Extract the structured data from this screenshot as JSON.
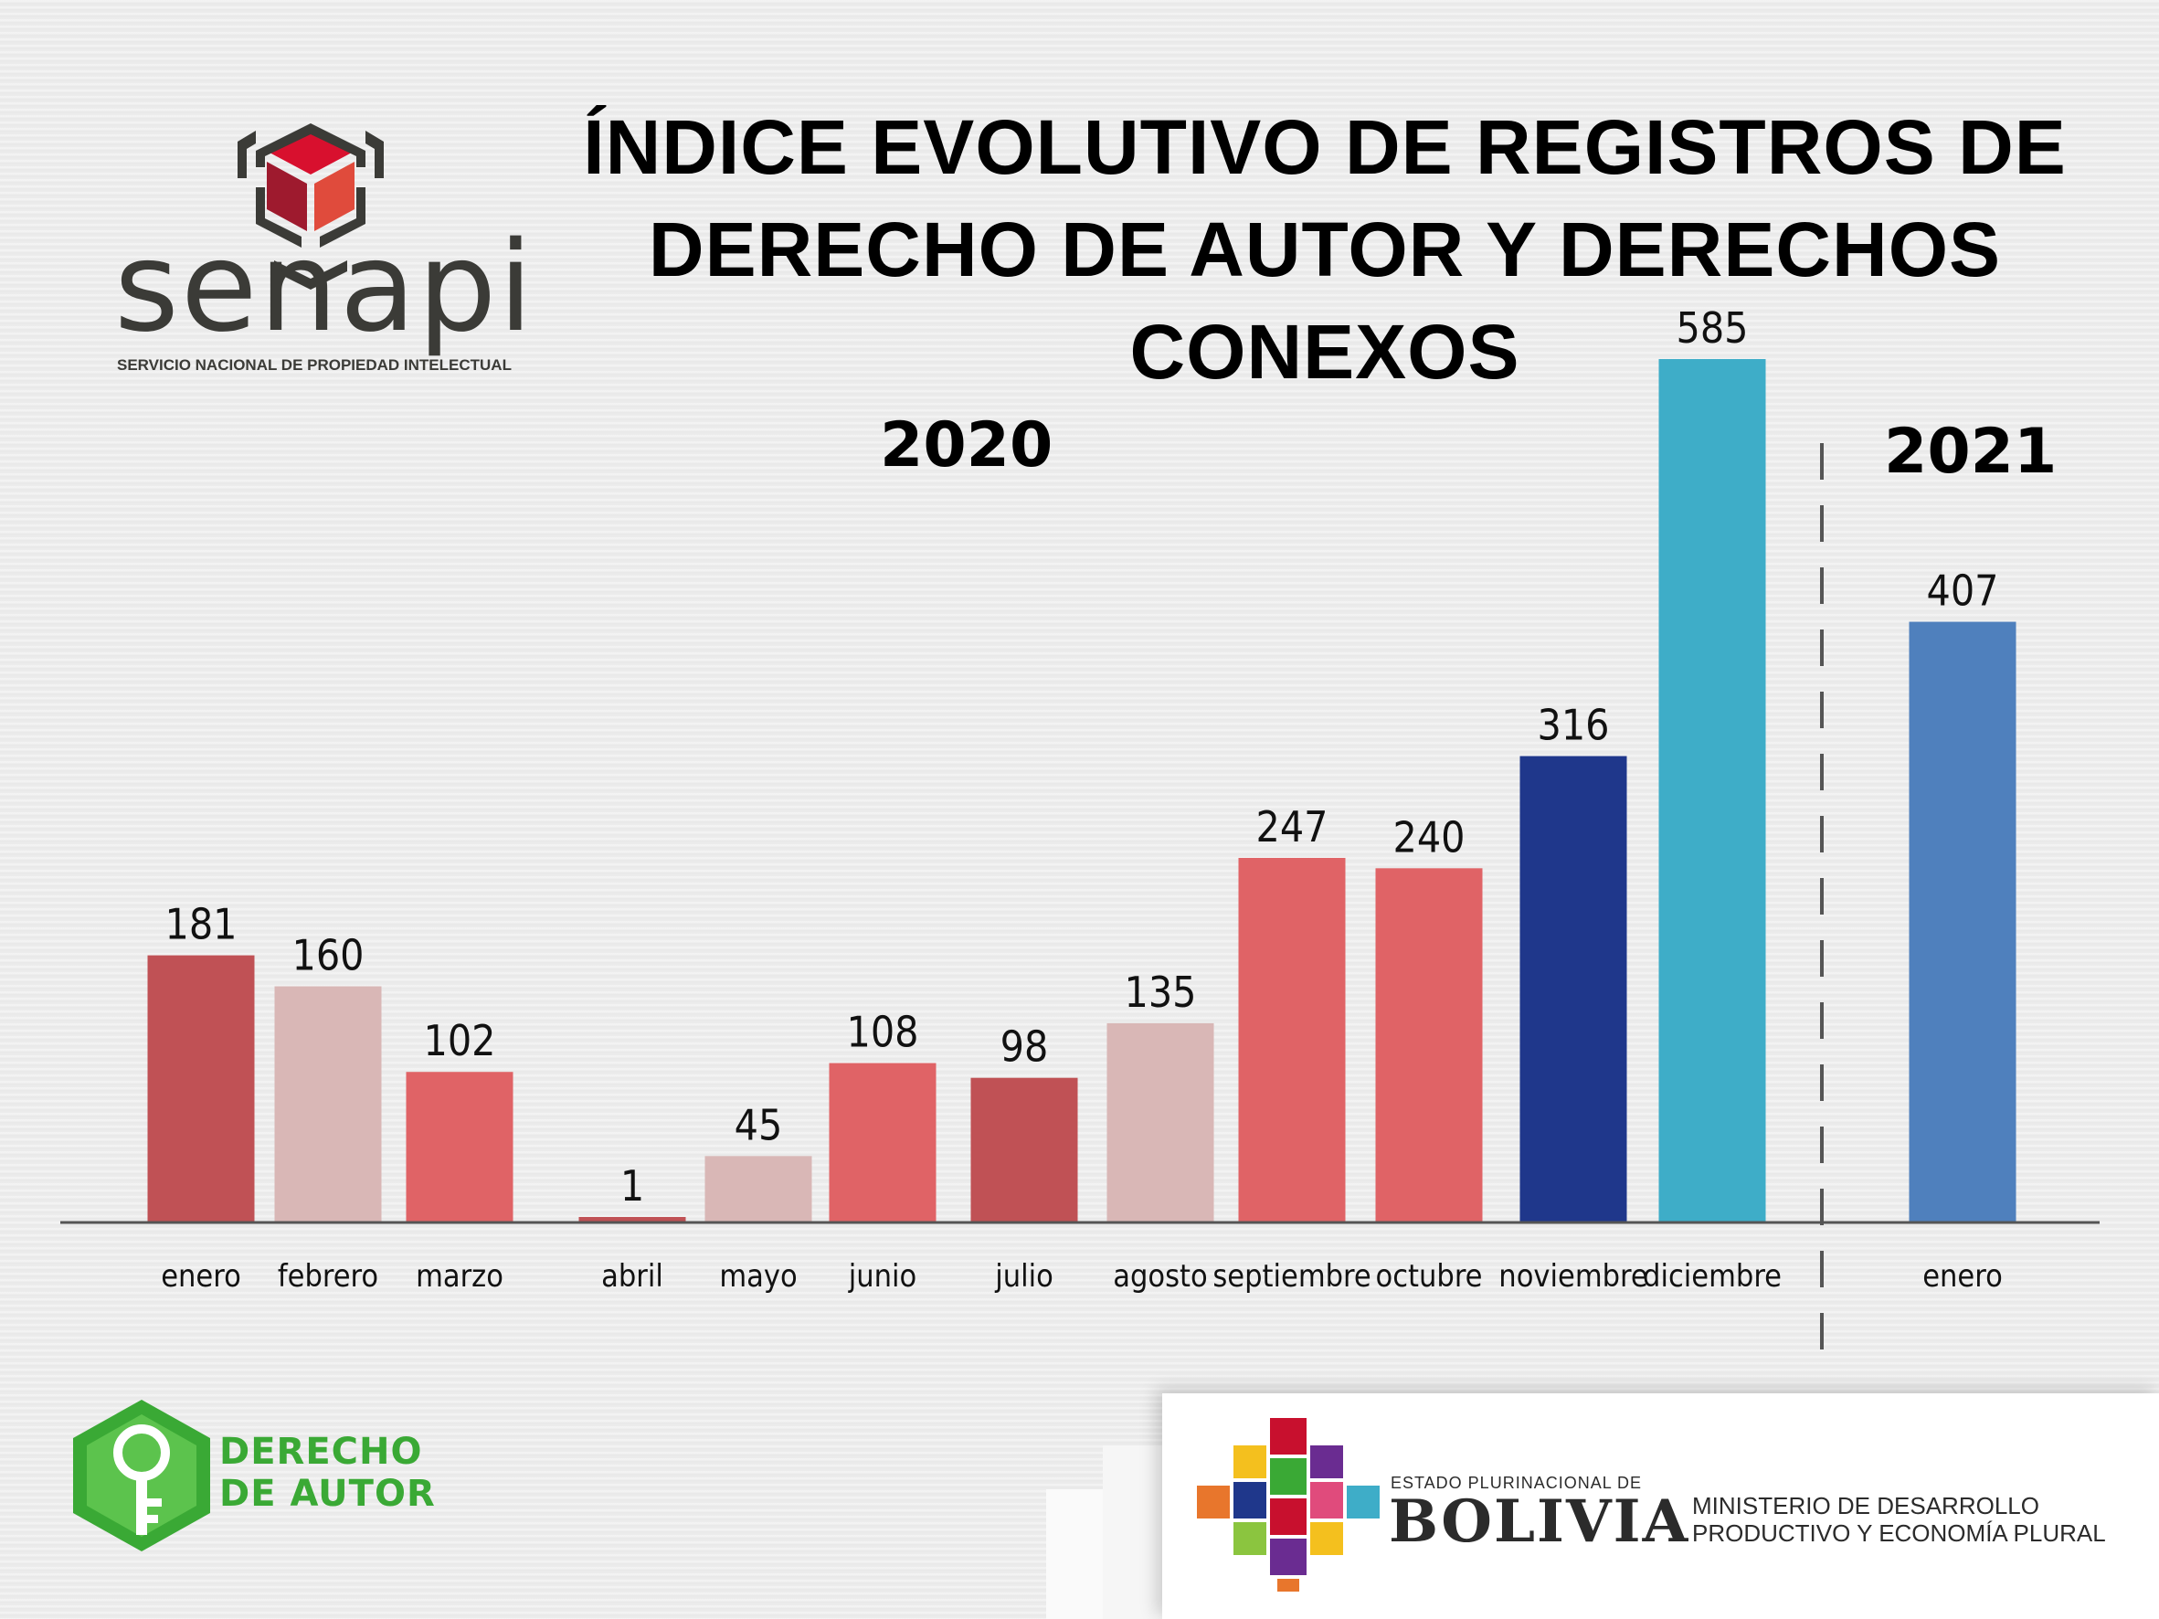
{
  "header": {
    "title_line1": "ÍNDICE EVOLUTIVO DE REGISTROS DE",
    "title_line2": "DERECHO DE AUTOR Y DERECHOS CONEXOS"
  },
  "brand": {
    "senapi_name": "senapi",
    "senapi_subtitle": "SERVICIO NACIONAL DE PROPIEDAD INTELECTUAL",
    "da_line1": "DERECHO",
    "da_line2": "DE AUTOR",
    "estado": "ESTADO PLURINACIONAL DE",
    "bolivia": "BOLIVIA",
    "ministerio_line1": "MINISTERIO DE DESARROLLO",
    "ministerio_line2": "PRODUCTIVO Y ECONOMÍA PLURAL",
    "colors": {
      "senapi_red": "#c8102e",
      "senapi_gray": "#3b3b37",
      "da_green": "#3aa935"
    },
    "icons": [
      "senapi-cube-icon",
      "key-hexagon-icon",
      "bolivia-emblem-icon"
    ]
  },
  "chart_data": {
    "type": "bar",
    "title": "ÍNDICE EVOLUTIVO DE REGISTROS DE DERECHO DE AUTOR Y DERECHOS CONEXOS",
    "groups": [
      {
        "label": "2020",
        "categories": [
          "enero",
          "febrero",
          "marzo",
          "abril",
          "mayo",
          "junio",
          "julio",
          "agosto",
          "septiembre",
          "octubre",
          "noviembre",
          "diciembre"
        ]
      },
      {
        "label": "2021",
        "categories": [
          "enero"
        ]
      }
    ],
    "categories": [
      "enero",
      "febrero",
      "marzo",
      "abril",
      "mayo",
      "junio",
      "julio",
      "agosto",
      "septiembre",
      "octubre",
      "noviembre",
      "diciembre",
      "enero"
    ],
    "values": [
      181,
      160,
      102,
      1,
      45,
      108,
      98,
      135,
      247,
      240,
      316,
      585,
      407
    ],
    "colors": [
      "#c05155",
      "#d9b7b6",
      "#e06366",
      "#c05155",
      "#d9b7b6",
      "#e06366",
      "#c05155",
      "#d9b7b6",
      "#e06366",
      "#e06366",
      "#1f378b",
      "#3eadc8",
      "#4f80bd"
    ],
    "ylim": [
      0,
      585
    ],
    "grid": false,
    "legend": "none",
    "data_labels": true
  }
}
